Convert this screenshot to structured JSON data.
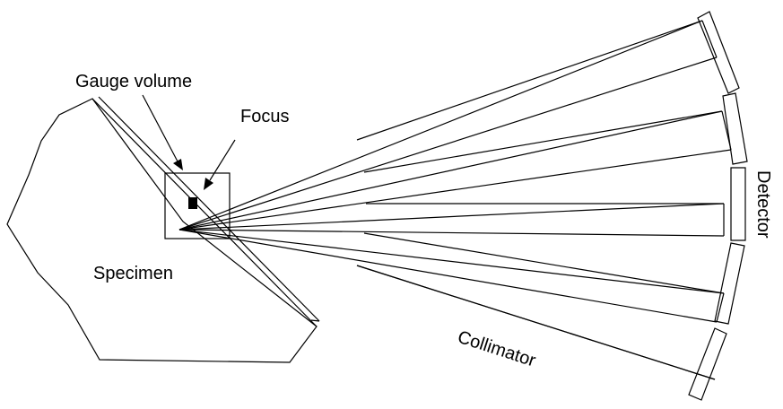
{
  "labels": {
    "gauge_volume": "Gauge volume",
    "focus": "Focus",
    "specimen": "Specimen",
    "collimator": "Collimator",
    "detector": "Detector"
  },
  "colors": {
    "line": "#000000",
    "background": "#ffffff",
    "focus_fill": "#000000"
  },
  "diagram": {
    "collimator_channels": 5,
    "detector_segments": 5
  }
}
